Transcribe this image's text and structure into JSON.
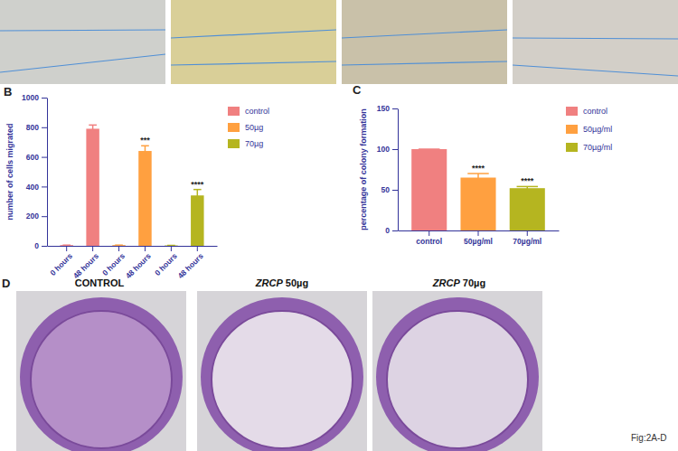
{
  "chart_data": [
    {
      "type": "bar",
      "panel": "B",
      "y_label": "number of cells migrated",
      "categories": [
        "0 hours",
        "48 hours",
        "0 hours",
        "48 hours",
        "0 hours",
        "48 hours"
      ],
      "series": [
        {
          "name": "control",
          "color": "#f08080",
          "values": [
            5,
            790,
            null,
            null,
            null,
            null
          ],
          "errors": [
            0,
            25,
            null,
            null,
            null,
            null
          ],
          "significance": [
            null,
            null,
            null,
            null,
            null,
            null
          ]
        },
        {
          "name": "50µg",
          "color": "#ffa040",
          "values": [
            null,
            null,
            5,
            640,
            null,
            null
          ],
          "errors": [
            null,
            null,
            0,
            35,
            null,
            null
          ],
          "significance": [
            null,
            null,
            null,
            "***",
            null,
            null
          ]
        },
        {
          "name": "70µg",
          "color": "#b5b520",
          "values": [
            null,
            null,
            null,
            null,
            3,
            340
          ],
          "errors": [
            null,
            null,
            null,
            null,
            0,
            40
          ],
          "significance": [
            null,
            null,
            null,
            null,
            null,
            "****"
          ]
        }
      ],
      "ylim": [
        0,
        1000
      ],
      "yticks": [
        0,
        200,
        400,
        600,
        800,
        1000
      ],
      "legend": "right"
    },
    {
      "type": "bar",
      "panel": "C",
      "y_label": "percentage of colony formation",
      "categories": [
        "control",
        "50µg/ml",
        "70µg/ml"
      ],
      "values": [
        100,
        65,
        52
      ],
      "errors": [
        0,
        5,
        2
      ],
      "colors": [
        "#f08080",
        "#ffa040",
        "#b5b520"
      ],
      "significance": [
        null,
        "****",
        "****"
      ],
      "ylim": [
        0,
        150
      ],
      "yticks": [
        0,
        50,
        100,
        150
      ],
      "legend": "right"
    }
  ],
  "figure": {
    "panel": "D",
    "captions": [
      {
        "text": "CONTROL"
      },
      {
        "italic": "ZRCP",
        "text": "50µg"
      },
      {
        "italic": "ZRCP",
        "text": "70µg"
      }
    ],
    "caption": "Fig:2A-D"
  }
}
